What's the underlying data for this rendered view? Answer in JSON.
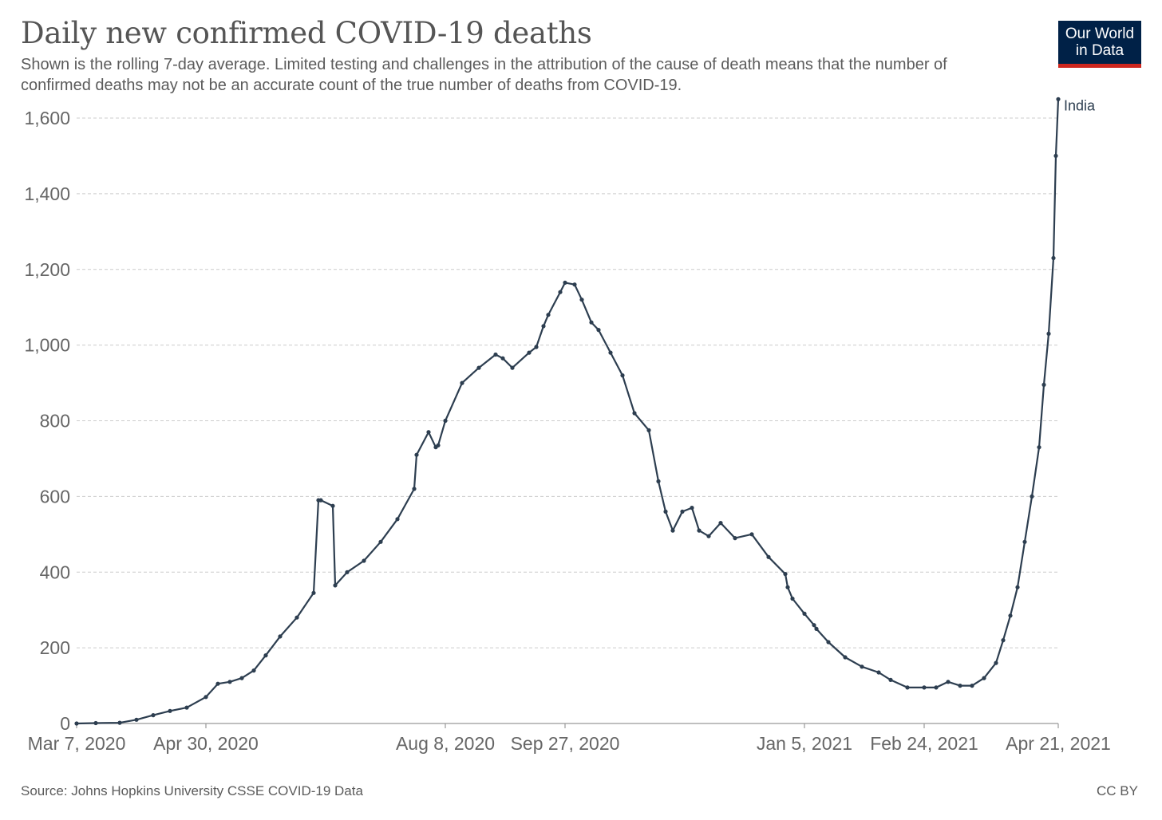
{
  "title": "Daily new confirmed COVID-19 deaths",
  "subtitle": "Shown is the rolling 7-day average. Limited testing and challenges in the attribution of the cause of death means that the number of confirmed deaths may not be an accurate count of the true number of deaths from COVID-19.",
  "logo": {
    "line1": "Our World",
    "line2": "in Data"
  },
  "source": "Source: Johns Hopkins University CSSE COVID-19 Data",
  "license": "CC BY",
  "colors": {
    "series": "#2d3e50",
    "grid": "#cccccc",
    "logo_bg": "#002147",
    "logo_accent": "#ce261e"
  },
  "chart_data": {
    "type": "line",
    "title": "Daily new confirmed COVID-19 deaths",
    "xlabel": "",
    "ylabel": "",
    "ylim": [
      0,
      1600
    ],
    "y_ticks": [
      0,
      200,
      400,
      600,
      800,
      1000,
      1200,
      1400,
      1600
    ],
    "y_tick_labels": [
      "0",
      "200",
      "400",
      "600",
      "800",
      "1,000",
      "1,200",
      "1,400",
      "1,600"
    ],
    "x_range": [
      "2020-03-07",
      "2021-04-21"
    ],
    "x_ticks": [
      "2020-03-07",
      "2020-04-30",
      "2020-08-08",
      "2020-09-27",
      "2021-01-05",
      "2021-02-24",
      "2021-04-21"
    ],
    "x_tick_labels": [
      "Mar 7, 2020",
      "Apr 30, 2020",
      "Aug 8, 2020",
      "Sep 27, 2020",
      "Jan 5, 2021",
      "Feb 24, 2021",
      "Apr 21, 2021"
    ],
    "grid": "horizontal dashed",
    "series": [
      {
        "name": "India",
        "x": [
          "2020-03-07",
          "2020-03-15",
          "2020-03-25",
          "2020-04-01",
          "2020-04-08",
          "2020-04-15",
          "2020-04-22",
          "2020-04-30",
          "2020-05-05",
          "2020-05-10",
          "2020-05-15",
          "2020-05-20",
          "2020-05-25",
          "2020-05-31",
          "2020-06-07",
          "2020-06-14",
          "2020-06-16",
          "2020-06-17",
          "2020-06-22",
          "2020-06-23",
          "2020-06-28",
          "2020-07-05",
          "2020-07-12",
          "2020-07-19",
          "2020-07-26",
          "2020-07-27",
          "2020-08-01",
          "2020-08-04",
          "2020-08-05",
          "2020-08-08",
          "2020-08-15",
          "2020-08-22",
          "2020-08-29",
          "2020-09-01",
          "2020-09-05",
          "2020-09-12",
          "2020-09-15",
          "2020-09-18",
          "2020-09-20",
          "2020-09-25",
          "2020-09-27",
          "2020-10-01",
          "2020-10-04",
          "2020-10-08",
          "2020-10-11",
          "2020-10-16",
          "2020-10-21",
          "2020-10-26",
          "2020-11-01",
          "2020-11-05",
          "2020-11-08",
          "2020-11-11",
          "2020-11-15",
          "2020-11-19",
          "2020-11-22",
          "2020-11-26",
          "2020-12-01",
          "2020-12-07",
          "2020-12-14",
          "2020-12-21",
          "2020-12-28",
          "2020-12-29",
          "2020-12-31",
          "2021-01-05",
          "2021-01-09",
          "2021-01-10",
          "2021-01-15",
          "2021-01-22",
          "2021-01-29",
          "2021-02-05",
          "2021-02-10",
          "2021-02-17",
          "2021-02-24",
          "2021-03-01",
          "2021-03-06",
          "2021-03-11",
          "2021-03-16",
          "2021-03-21",
          "2021-03-26",
          "2021-03-29",
          "2021-04-01",
          "2021-04-04",
          "2021-04-07",
          "2021-04-10",
          "2021-04-13",
          "2021-04-15",
          "2021-04-17",
          "2021-04-19",
          "2021-04-20",
          "2021-04-21"
        ],
        "y": [
          0,
          1,
          2,
          10,
          22,
          33,
          42,
          70,
          105,
          110,
          120,
          140,
          180,
          230,
          280,
          345,
          590,
          590,
          575,
          365,
          400,
          430,
          480,
          540,
          620,
          710,
          770,
          730,
          735,
          800,
          900,
          940,
          975,
          965,
          940,
          980,
          995,
          1050,
          1080,
          1140,
          1165,
          1160,
          1120,
          1060,
          1040,
          980,
          920,
          820,
          775,
          640,
          560,
          510,
          560,
          570,
          510,
          495,
          530,
          490,
          500,
          440,
          395,
          360,
          330,
          290,
          260,
          250,
          215,
          175,
          150,
          135,
          115,
          95,
          95,
          95,
          110,
          100,
          100,
          120,
          160,
          220,
          285,
          360,
          480,
          600,
          730,
          895,
          1030,
          1230,
          1500,
          1650
        ]
      }
    ]
  }
}
